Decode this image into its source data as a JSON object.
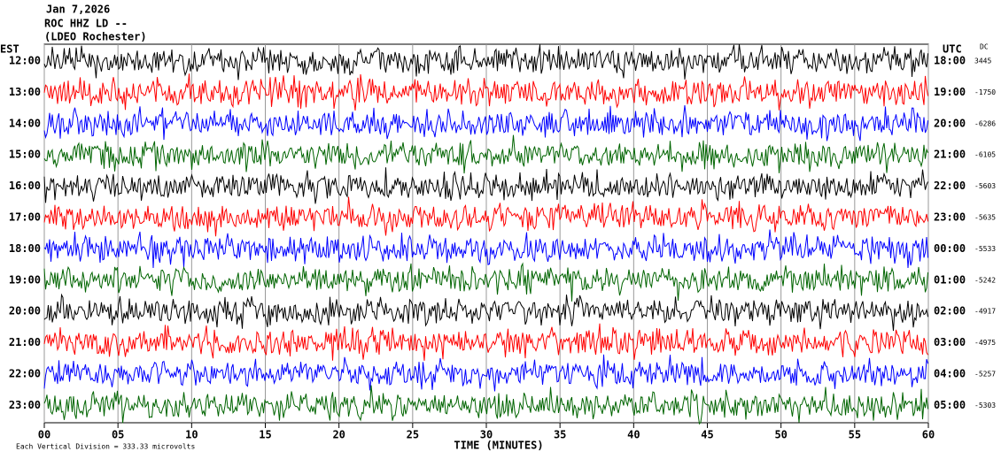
{
  "header": {
    "date": "Jan 7,2026",
    "station": "ROC HHZ LD --",
    "network": "(LDEO Rochester)"
  },
  "left_axis_label": "EST",
  "right_axis_label": "UTC",
  "dc_label": "DC",
  "rows": [
    {
      "est": "12:00",
      "utc": "18:00",
      "dc": "3445",
      "color": "#000000"
    },
    {
      "est": "13:00",
      "utc": "19:00",
      "dc": "-1750",
      "color": "#ff0000"
    },
    {
      "est": "14:00",
      "utc": "20:00",
      "dc": "-6286",
      "color": "#0000ff"
    },
    {
      "est": "15:00",
      "utc": "21:00",
      "dc": "-6105",
      "color": "#006400"
    },
    {
      "est": "16:00",
      "utc": "22:00",
      "dc": "-5603",
      "color": "#000000"
    },
    {
      "est": "17:00",
      "utc": "23:00",
      "dc": "-5635",
      "color": "#ff0000"
    },
    {
      "est": "18:00",
      "utc": "00:00",
      "dc": "-5533",
      "color": "#0000ff"
    },
    {
      "est": "19:00",
      "utc": "01:00",
      "dc": "-5242",
      "color": "#006400"
    },
    {
      "est": "20:00",
      "utc": "02:00",
      "dc": "-4917",
      "color": "#000000"
    },
    {
      "est": "21:00",
      "utc": "03:00",
      "dc": "-4975",
      "color": "#ff0000"
    },
    {
      "est": "22:00",
      "utc": "04:00",
      "dc": "-5257",
      "color": "#0000ff"
    },
    {
      "est": "23:00",
      "utc": "05:00",
      "dc": "-5303",
      "color": "#006400"
    }
  ],
  "x_axis": {
    "label": "TIME (MINUTES)",
    "xlim": [
      0,
      60
    ],
    "ticks": [
      {
        "value": 0,
        "label": "00"
      },
      {
        "value": 5,
        "label": "05"
      },
      10,
      15,
      20,
      25,
      30,
      35,
      40,
      45,
      50,
      55,
      60
    ]
  },
  "footer": "Each Vertical Division =  333.33 microvolts"
}
